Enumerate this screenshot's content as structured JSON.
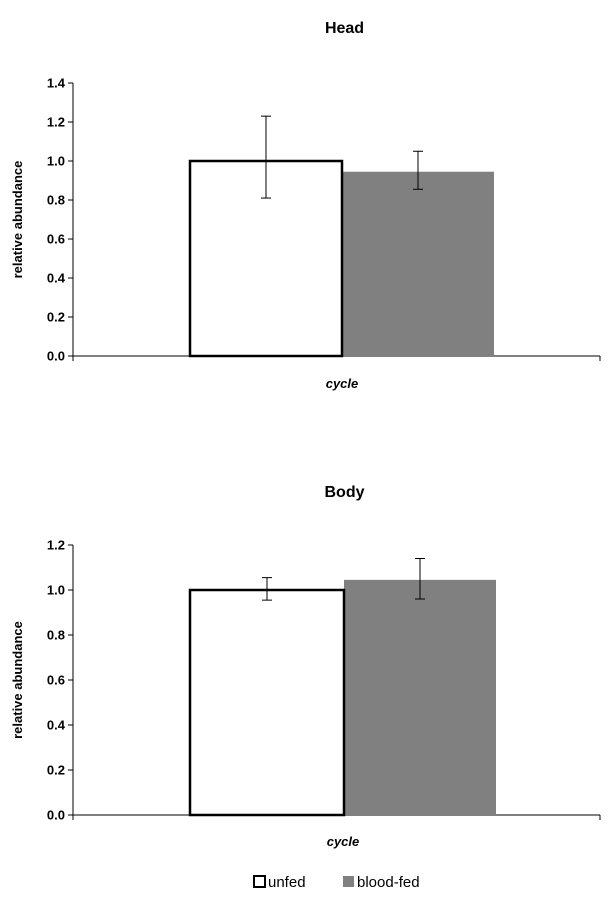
{
  "chart_data": [
    {
      "type": "bar",
      "title": "Head",
      "xlabel": "cycle",
      "ylabel": "relative abundance",
      "ylim": [
        0,
        1.4
      ],
      "yticks": [
        "0.0",
        "0.2",
        "0.4",
        "0.6",
        "0.8",
        "1.0",
        "1.2",
        "1.4"
      ],
      "categories": [
        "cycle"
      ],
      "series": [
        {
          "name": "unfed",
          "values": [
            1.0
          ],
          "error_low": [
            0.81
          ],
          "error_high": [
            1.23
          ],
          "color": "#ffffff",
          "stroke": "#000000"
        },
        {
          "name": "blood-fed",
          "values": [
            0.945
          ],
          "error_low": [
            0.855
          ],
          "error_high": [
            1.05
          ],
          "color": "#808080",
          "stroke": "#808080"
        }
      ]
    },
    {
      "type": "bar",
      "title": "Body",
      "xlabel": "cycle",
      "ylabel": "relative abundance",
      "ylim": [
        0,
        1.2
      ],
      "yticks": [
        "0.0",
        "0.2",
        "0.4",
        "0.6",
        "0.8",
        "1.0",
        "1.2"
      ],
      "categories": [
        "cycle"
      ],
      "series": [
        {
          "name": "unfed",
          "values": [
            1.0
          ],
          "error_low": [
            0.955
          ],
          "error_high": [
            1.055
          ],
          "color": "#ffffff",
          "stroke": "#000000"
        },
        {
          "name": "blood-fed",
          "values": [
            1.045
          ],
          "error_low": [
            0.96
          ],
          "error_high": [
            1.14
          ],
          "color": "#808080",
          "stroke": "#808080"
        }
      ]
    }
  ],
  "legend": {
    "placement": "bottom-center",
    "items": [
      {
        "label": "unfed",
        "color": "#ffffff",
        "stroke": "#000000"
      },
      {
        "label": "blood-fed",
        "color": "#808080",
        "stroke": "#808080"
      }
    ]
  }
}
